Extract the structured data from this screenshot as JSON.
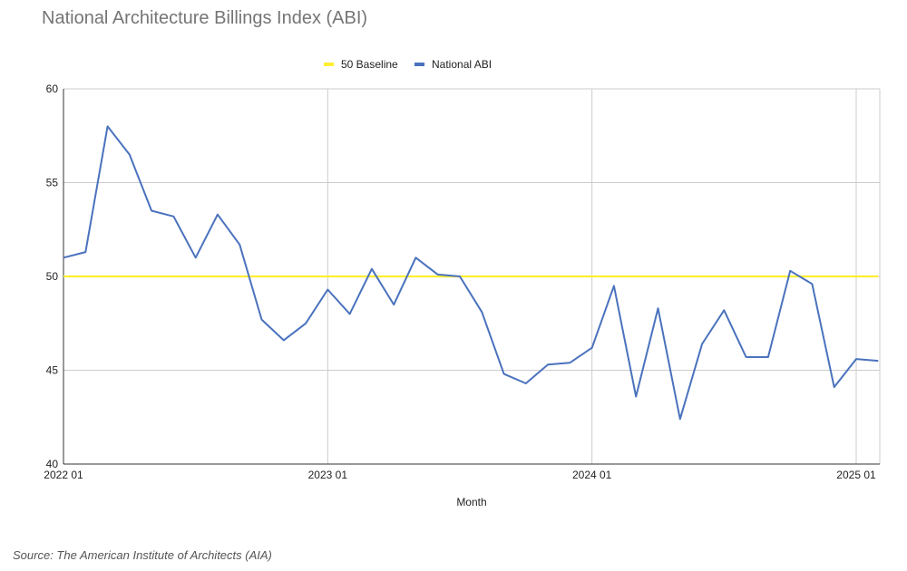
{
  "source_text": "Source: The American Institute of Architects (AIA)",
  "colors": {
    "baseline": "#ffee33",
    "abi": "#4a72bd",
    "grid": "#cccccc",
    "axis": "#333333"
  },
  "chart_data": {
    "type": "line",
    "title": "National Architecture Billings Index (ABI)",
    "xlabel": "Month",
    "ylabel": "",
    "ylim": [
      40,
      60
    ],
    "yticks": [
      40,
      45,
      50,
      55,
      60
    ],
    "x_tick_labels": [
      "2022 01",
      "2023 01",
      "2024 01",
      "2025 01"
    ],
    "x": [
      "2022 01",
      "2022 02",
      "2022 03",
      "2022 04",
      "2022 05",
      "2022 06",
      "2022 07",
      "2022 08",
      "2022 09",
      "2022 10",
      "2022 11",
      "2022 12",
      "2023 01",
      "2023 02",
      "2023 03",
      "2023 04",
      "2023 05",
      "2023 06",
      "2023 07",
      "2023 08",
      "2023 09",
      "2023 10",
      "2023 11",
      "2023 12",
      "2024 01",
      "2024 02",
      "2024 03",
      "2024 04",
      "2024 05",
      "2024 06",
      "2024 07",
      "2024 08",
      "2024 09",
      "2024 10",
      "2024 11",
      "2024 12",
      "2025 01",
      "2025 02"
    ],
    "legend_position": "top-center",
    "grid": true,
    "series": [
      {
        "name": "50 Baseline",
        "values": [
          50,
          50,
          50,
          50,
          50,
          50,
          50,
          50,
          50,
          50,
          50,
          50,
          50,
          50,
          50,
          50,
          50,
          50,
          50,
          50,
          50,
          50,
          50,
          50,
          50,
          50,
          50,
          50,
          50,
          50,
          50,
          50,
          50,
          50,
          50,
          50,
          50,
          50
        ]
      },
      {
        "name": "National ABI",
        "values": [
          51.0,
          51.3,
          58.0,
          56.5,
          53.5,
          53.2,
          51.0,
          53.3,
          51.7,
          47.7,
          46.6,
          47.5,
          49.3,
          48.0,
          50.4,
          48.5,
          51.0,
          50.1,
          50.0,
          48.1,
          44.8,
          44.3,
          45.3,
          45.4,
          46.2,
          49.5,
          43.6,
          48.3,
          42.4,
          46.4,
          48.2,
          45.7,
          45.7,
          50.3,
          49.6,
          44.1,
          45.6,
          45.5
        ]
      }
    ]
  }
}
